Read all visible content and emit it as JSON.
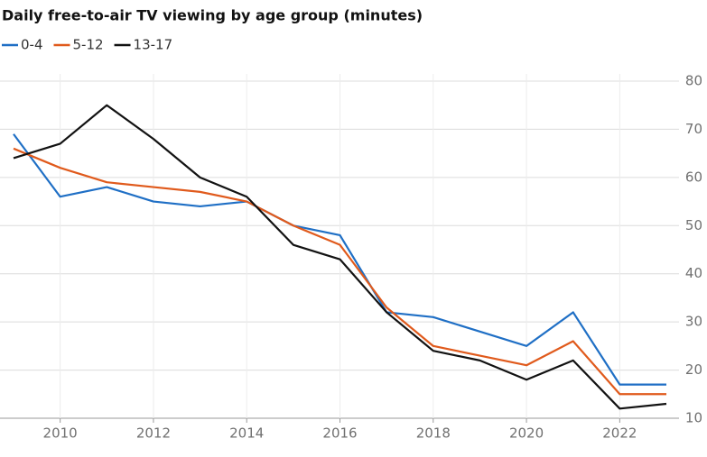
{
  "chart_data": {
    "type": "line",
    "title": "Daily free-to-air TV viewing by age group (minutes)",
    "x": [
      2009,
      2010,
      2011,
      2012,
      2013,
      2014,
      2015,
      2016,
      2017,
      2018,
      2019,
      2020,
      2021,
      2022,
      2023
    ],
    "series": [
      {
        "name": "0-4",
        "color": "#1f6fc5",
        "values": [
          69,
          56,
          58,
          55,
          54,
          55,
          50,
          48,
          32,
          31,
          28,
          25,
          32,
          17,
          17
        ]
      },
      {
        "name": "5-12",
        "color": "#e05a1c",
        "values": [
          66,
          62,
          59,
          58,
          57,
          55,
          50,
          46,
          33,
          25,
          23,
          21,
          26,
          15,
          15
        ]
      },
      {
        "name": "13-17",
        "color": "#121212",
        "values": [
          64,
          67,
          75,
          68,
          60,
          56,
          46,
          43,
          32,
          24,
          22,
          18,
          22,
          12,
          13
        ]
      }
    ],
    "xlim": [
      2009,
      2023
    ],
    "xticks": [
      2010,
      2012,
      2014,
      2016,
      2018,
      2020,
      2022
    ],
    "ylim": [
      10,
      80
    ],
    "yticks": [
      10,
      20,
      30,
      40,
      50,
      60,
      70,
      80
    ],
    "grid": true,
    "legend": "top-left"
  }
}
